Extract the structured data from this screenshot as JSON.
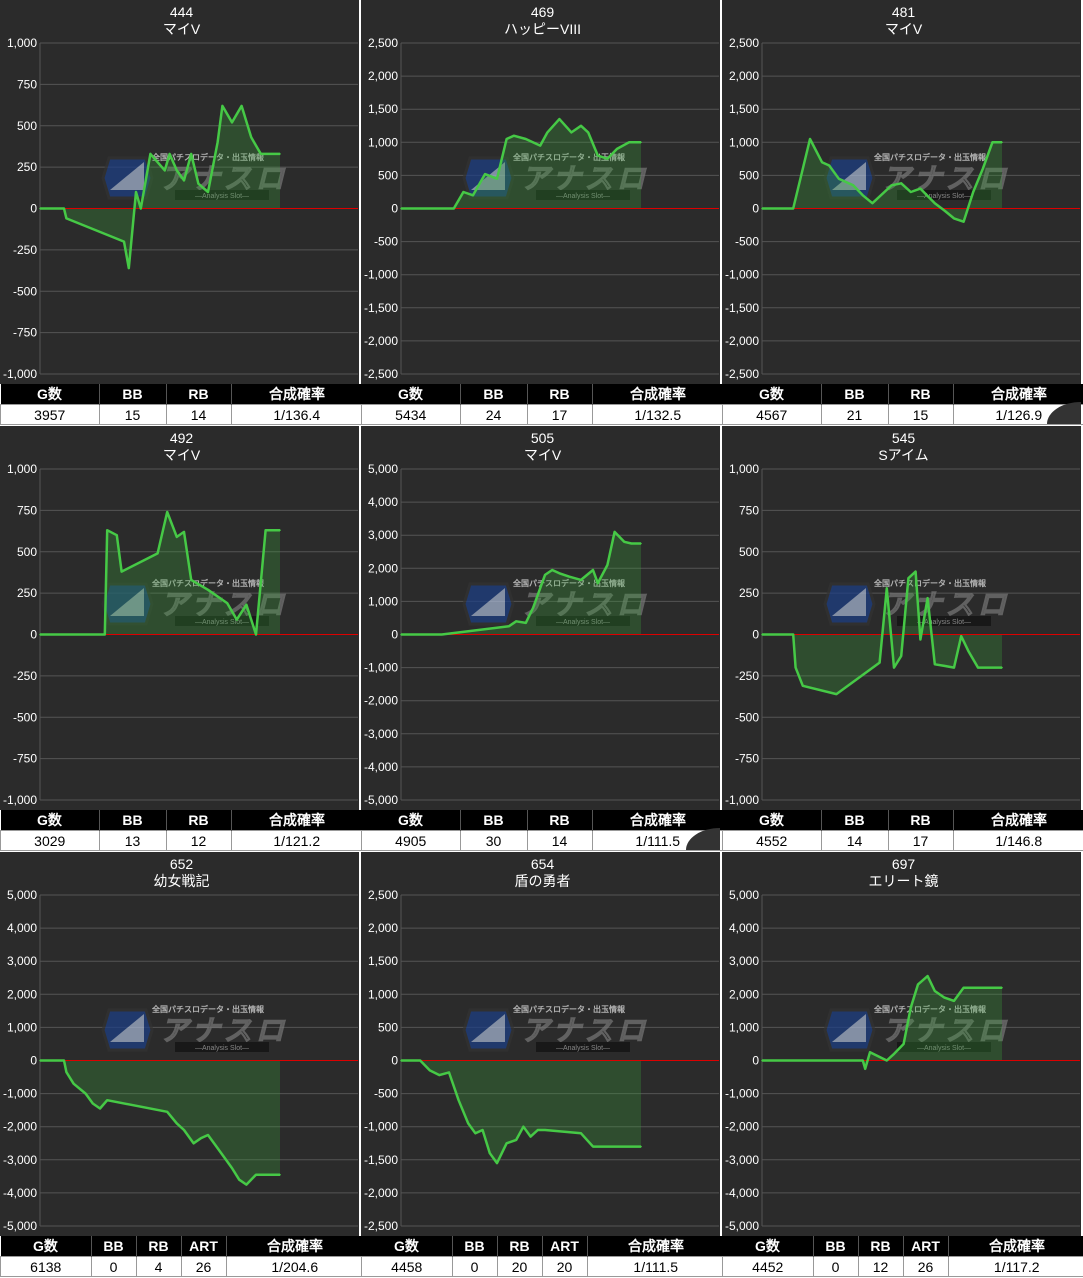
{
  "chart_data": [
    {
      "type": "area",
      "title": "444",
      "subtitle": "マイV",
      "ylim": [
        -1000,
        1000
      ],
      "yticks": [
        "1,000",
        "750",
        "500",
        "250",
        "0",
        "-250",
        "-500",
        "-750",
        "-1,000"
      ],
      "x": [
        0,
        0.1,
        0.11,
        0.35,
        0.37,
        0.4,
        0.42,
        0.46,
        0.52,
        0.54,
        0.57,
        0.6,
        0.63,
        0.66,
        0.7,
        0.74,
        0.76,
        0.8,
        0.84,
        0.88,
        0.92,
        0.96,
        1
      ],
      "values": [
        0,
        0,
        -60,
        -200,
        -360,
        100,
        0,
        330,
        230,
        330,
        230,
        170,
        330,
        150,
        100,
        400,
        620,
        520,
        620,
        430,
        330,
        330,
        330
      ],
      "stats": {
        "headers": [
          "G数",
          "BB",
          "RB",
          "合成確率"
        ],
        "values": [
          "3957",
          "15",
          "14",
          "1/136.4"
        ]
      }
    },
    {
      "type": "area",
      "title": "469",
      "subtitle": "ハッピーVIII",
      "ylim": [
        -2500,
        2500
      ],
      "yticks": [
        "2,500",
        "2,000",
        "1,500",
        "1,000",
        "500",
        "0",
        "-500",
        "-1,000",
        "-1,500",
        "-2,000",
        "-2,500"
      ],
      "x": [
        0,
        0.22,
        0.26,
        0.3,
        0.35,
        0.4,
        0.44,
        0.47,
        0.52,
        0.58,
        0.61,
        0.66,
        0.71,
        0.75,
        0.78,
        0.82,
        0.86,
        0.9,
        0.95,
        1
      ],
      "values": [
        0,
        0,
        250,
        200,
        520,
        450,
        1050,
        1100,
        1050,
        950,
        1150,
        1350,
        1150,
        1250,
        1150,
        800,
        750,
        900,
        1000,
        1000
      ],
      "stats": {
        "headers": [
          "G数",
          "BB",
          "RB",
          "合成確率"
        ],
        "values": [
          "5434",
          "24",
          "17",
          "1/132.5"
        ]
      }
    },
    {
      "type": "area",
      "title": "481",
      "subtitle": "マイV",
      "ylim": [
        -2500,
        2500
      ],
      "yticks": [
        "2,500",
        "2,000",
        "1,500",
        "1,000",
        "500",
        "0",
        "-500",
        "-1,000",
        "-1,500",
        "-2,000",
        "-2,500"
      ],
      "x": [
        0,
        0.13,
        0.2,
        0.25,
        0.28,
        0.32,
        0.38,
        0.42,
        0.46,
        0.54,
        0.58,
        0.62,
        0.66,
        0.72,
        0.76,
        0.8,
        0.84,
        0.88,
        0.92,
        0.96,
        1
      ],
      "values": [
        0,
        0,
        1050,
        700,
        650,
        450,
        350,
        200,
        80,
        350,
        380,
        250,
        300,
        80,
        -30,
        -150,
        -200,
        250,
        600,
        1000,
        1000
      ],
      "stats": {
        "headers": [
          "G数",
          "BB",
          "RB",
          "合成確率"
        ],
        "values": [
          "4567",
          "21",
          "15",
          "1/126.9"
        ]
      }
    },
    {
      "type": "area",
      "title": "492",
      "subtitle": "マイV",
      "ylim": [
        -1000,
        1000
      ],
      "yticks": [
        "1,000",
        "750",
        "500",
        "250",
        "0",
        "-250",
        "-500",
        "-750",
        "-1,000"
      ],
      "x": [
        0,
        0.27,
        0.28,
        0.32,
        0.34,
        0.49,
        0.53,
        0.57,
        0.6,
        0.63,
        0.7,
        0.78,
        0.82,
        0.86,
        0.9,
        0.94,
        0.96,
        1
      ],
      "values": [
        0,
        0,
        630,
        600,
        380,
        490,
        740,
        590,
        620,
        330,
        270,
        190,
        90,
        180,
        0,
        630,
        630,
        630
      ],
      "stats": {
        "headers": [
          "G数",
          "BB",
          "RB",
          "合成確率"
        ],
        "values": [
          "3029",
          "13",
          "12",
          "1/121.2"
        ]
      }
    },
    {
      "type": "area",
      "title": "505",
      "subtitle": "マイV",
      "ylim": [
        -5000,
        5000
      ],
      "yticks": [
        "5,000",
        "4,000",
        "3,000",
        "2,000",
        "1,000",
        "0",
        "-1,000",
        "-2,000",
        "-3,000",
        "-4,000",
        "-5,000"
      ],
      "x": [
        0,
        0.17,
        0.45,
        0.48,
        0.52,
        0.55,
        0.6,
        0.63,
        0.66,
        0.7,
        0.75,
        0.8,
        0.82,
        0.86,
        0.89,
        0.93,
        0.96,
        1
      ],
      "values": [
        0,
        0,
        250,
        400,
        350,
        800,
        1800,
        1950,
        1850,
        1750,
        1650,
        1950,
        1550,
        2100,
        3100,
        2800,
        2750,
        2750
      ],
      "stats": {
        "headers": [
          "G数",
          "BB",
          "RB",
          "合成確率"
        ],
        "values": [
          "4905",
          "30",
          "14",
          "1/111.5"
        ]
      }
    },
    {
      "type": "area",
      "title": "545",
      "subtitle": "Sアイム",
      "ylim": [
        -1000,
        1000
      ],
      "yticks": [
        "1,000",
        "750",
        "500",
        "250",
        "0",
        "-250",
        "-500",
        "-750",
        "-1,000"
      ],
      "x": [
        0,
        0.13,
        0.14,
        0.17,
        0.31,
        0.49,
        0.52,
        0.55,
        0.58,
        0.61,
        0.64,
        0.66,
        0.69,
        0.72,
        0.76,
        0.8,
        0.83,
        0.86,
        0.9,
        0.95,
        1
      ],
      "values": [
        0,
        0,
        -200,
        -310,
        -360,
        -170,
        280,
        -200,
        -130,
        340,
        380,
        -30,
        220,
        -180,
        -190,
        -200,
        -10,
        -100,
        -200,
        -200,
        -200
      ],
      "stats": {
        "headers": [
          "G数",
          "BB",
          "RB",
          "合成確率"
        ],
        "values": [
          "4552",
          "14",
          "17",
          "1/146.8"
        ]
      }
    },
    {
      "type": "area",
      "title": "652",
      "subtitle": "幼女戦記",
      "ylim": [
        -5000,
        5000
      ],
      "yticks": [
        "5,000",
        "4,000",
        "3,000",
        "2,000",
        "1,000",
        "0",
        "-1,000",
        "-2,000",
        "-3,000",
        "-4,000",
        "-5,000"
      ],
      "x": [
        0,
        0.1,
        0.11,
        0.14,
        0.19,
        0.22,
        0.25,
        0.28,
        0.53,
        0.57,
        0.6,
        0.64,
        0.67,
        0.7,
        0.73,
        0.77,
        0.8,
        0.83,
        0.86,
        0.9,
        0.93,
        1
      ],
      "values": [
        0,
        0,
        -350,
        -700,
        -1000,
        -1300,
        -1450,
        -1200,
        -1550,
        -1900,
        -2100,
        -2500,
        -2350,
        -2250,
        -2550,
        -2950,
        -3250,
        -3600,
        -3750,
        -3450,
        -3450,
        -3450
      ],
      "stats": {
        "headers": [
          "G数",
          "BB",
          "RB",
          "ART",
          "合成確率"
        ],
        "values": [
          "6138",
          "0",
          "4",
          "26",
          "1/204.6"
        ]
      }
    },
    {
      "type": "area",
      "title": "654",
      "subtitle": "盾の勇者",
      "ylim": [
        -2500,
        2500
      ],
      "yticks": [
        "2,500",
        "2,000",
        "1,500",
        "1,000",
        "500",
        "0",
        "-500",
        "-1,000",
        "-1,500",
        "-2,000",
        "-2,500"
      ],
      "x": [
        0,
        0.08,
        0.12,
        0.16,
        0.2,
        0.24,
        0.28,
        0.31,
        0.34,
        0.37,
        0.4,
        0.44,
        0.48,
        0.51,
        0.54,
        0.57,
        0.6,
        0.75,
        0.8,
        0.9,
        1
      ],
      "values": [
        0,
        0,
        -150,
        -220,
        -180,
        -600,
        -950,
        -1100,
        -1050,
        -1400,
        -1550,
        -1250,
        -1200,
        -1000,
        -1150,
        -1050,
        -1050,
        -1100,
        -1300,
        -1300,
        -1300
      ],
      "stats": {
        "headers": [
          "G数",
          "BB",
          "RB",
          "ART",
          "合成確率"
        ],
        "values": [
          "4458",
          "0",
          "20",
          "20",
          "1/111.5"
        ]
      }
    },
    {
      "type": "area",
      "title": "697",
      "subtitle": "エリート鏡",
      "ylim": [
        -5000,
        5000
      ],
      "yticks": [
        "5,000",
        "4,000",
        "3,000",
        "2,000",
        "1,000",
        "0",
        "-1,000",
        "-2,000",
        "-3,000",
        "-4,000",
        "-5,000"
      ],
      "x": [
        0,
        0.42,
        0.43,
        0.45,
        0.52,
        0.55,
        0.59,
        0.62,
        0.65,
        0.69,
        0.72,
        0.76,
        0.8,
        0.84,
        0.9,
        1
      ],
      "values": [
        0,
        0,
        -250,
        250,
        0,
        200,
        500,
        1600,
        2300,
        2550,
        2100,
        1900,
        1800,
        2200,
        2200,
        2200
      ],
      "stats": {
        "headers": [
          "G数",
          "BB",
          "RB",
          "ART",
          "合成確率"
        ],
        "values": [
          "4452",
          "0",
          "12",
          "26",
          "1/117.2"
        ]
      }
    }
  ],
  "watermark": {
    "top_text": "全国パチスロデータ・出玉情報",
    "logo_text": "アナスロ",
    "sub_text": "Analysis Slot"
  },
  "colors": {
    "background": "#2b2b2b",
    "grid": "#555555",
    "zero_line": "#dd0000",
    "series_line": "#46c946",
    "series_fill": "#3aa53a",
    "axis_text": "#ffffff"
  }
}
